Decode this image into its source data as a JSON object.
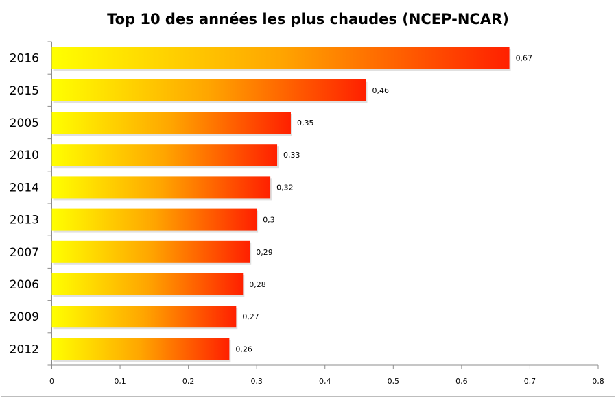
{
  "chart_data": {
    "type": "bar",
    "orientation": "horizontal",
    "title": "Top 10 des années les plus chaudes (NCEP-NCAR)",
    "categories": [
      "2016",
      "2015",
      "2005",
      "2010",
      "2014",
      "2013",
      "2007",
      "2006",
      "2009",
      "2012"
    ],
    "values": [
      0.67,
      0.46,
      0.35,
      0.33,
      0.32,
      0.3,
      0.29,
      0.28,
      0.27,
      0.26
    ],
    "data_labels": [
      "0,67",
      "0,46",
      "0,35",
      "0,33",
      "0,32",
      "0,3",
      "0,29",
      "0,28",
      "0,27",
      "0,26"
    ],
    "xlim": [
      0,
      0.8
    ],
    "x_ticks": [
      "0",
      "0,1",
      "0,2",
      "0,3",
      "0,4",
      "0,5",
      "0,6",
      "0,7",
      "0,8"
    ],
    "grid": false,
    "legend": "none",
    "colors": {
      "gradient_start": "#ffff00",
      "gradient_mid": "#ffa500",
      "gradient_end": "#ff2000"
    }
  }
}
